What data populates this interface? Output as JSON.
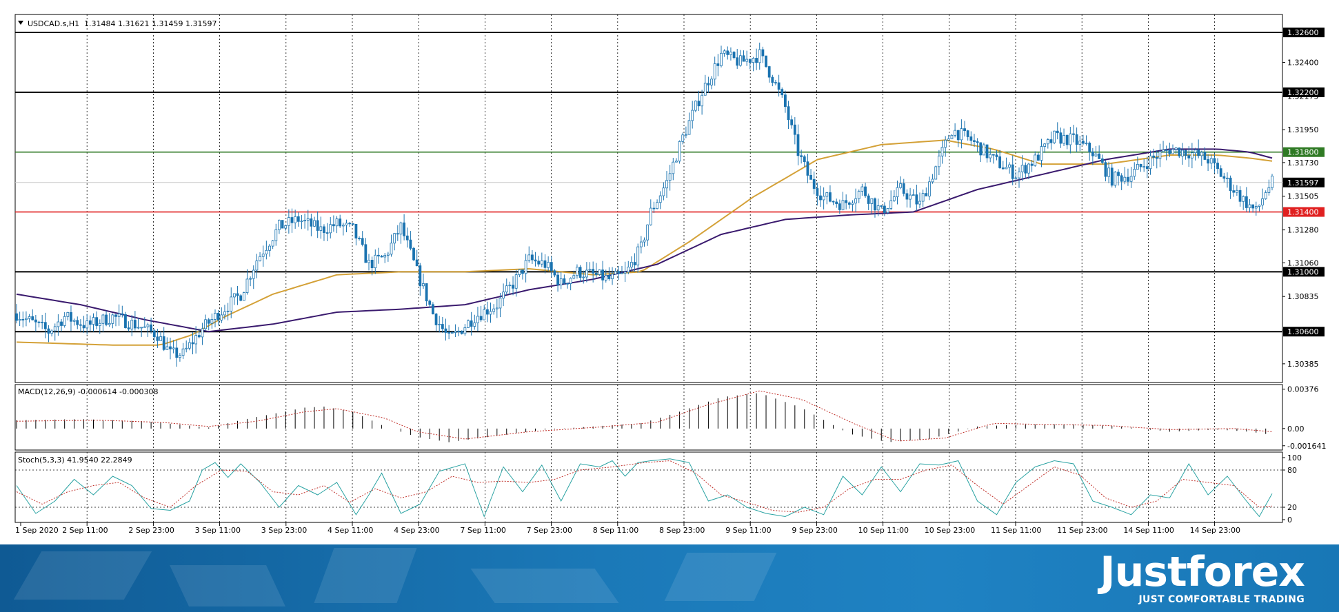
{
  "header": {
    "symbol_label": "USDCAD.s,H1",
    "ohlc": "1.31484 1.31621 1.31459 1.31597"
  },
  "indicators": {
    "macd_label": "MACD(12,26,9) -0.000614 -0.000308",
    "stoch_label": "Stoch(5,3,3) 41.9540 22.2849"
  },
  "colors": {
    "candle": "#1a73b0",
    "ma_fast": "#d4a137",
    "ma_slow": "#3a1a6e",
    "level_black": "#000000",
    "level_green": "#2f7a24",
    "level_red": "#e02020",
    "stoch_main": "#2aa3a3",
    "stoch_signal": "#c0302a",
    "macd_signal": "#c0302a"
  },
  "chart_data": [
    {
      "type": "candlestick",
      "title": "USDCAD.s,H1",
      "y_ticks": [
        "1.32600",
        "1.32400",
        "1.32175",
        "1.31950",
        "1.31730",
        "1.31505",
        "1.31280",
        "1.31060",
        "1.30835",
        "1.30610",
        "1.30385"
      ],
      "ylim": [
        1.3026,
        1.3272
      ],
      "x_ticks": [
        "1 Sep 2020",
        "2 Sep 11:00",
        "2 Sep 23:00",
        "3 Sep 11:00",
        "3 Sep 23:00",
        "4 Sep 11:00",
        "4 Sep 23:00",
        "7 Sep 11:00",
        "7 Sep 23:00",
        "8 Sep 11:00",
        "8 Sep 23:00",
        "9 Sep 11:00",
        "9 Sep 23:00",
        "10 Sep 11:00",
        "10 Sep 23:00",
        "11 Sep 11:00",
        "11 Sep 23:00",
        "14 Sep 11:00",
        "14 Sep 23:00"
      ],
      "levels": [
        {
          "value": 1.326,
          "label": "1.32600",
          "style": "black"
        },
        {
          "value": 1.322,
          "label": "1.32200",
          "style": "black"
        },
        {
          "value": 1.318,
          "label": "1.31800",
          "style": "green"
        },
        {
          "value": 1.314,
          "label": "1.31400",
          "style": "red"
        },
        {
          "value": 1.31,
          "label": "1.31000",
          "style": "black"
        },
        {
          "value": 1.306,
          "label": "1.30600",
          "style": "black"
        }
      ],
      "current_price": {
        "value": 1.31597,
        "label": "1.31597"
      },
      "close_path": [
        [
          0,
          1.3072
        ],
        [
          10,
          1.306
        ],
        [
          15,
          1.307
        ],
        [
          22,
          1.3064
        ],
        [
          30,
          1.307
        ],
        [
          38,
          1.3064
        ],
        [
          44,
          1.3058
        ],
        [
          48,
          1.3045
        ],
        [
          52,
          1.3045
        ],
        [
          58,
          1.3062
        ],
        [
          63,
          1.3072
        ],
        [
          70,
          1.3085
        ],
        [
          75,
          1.3108
        ],
        [
          82,
          1.313
        ],
        [
          88,
          1.3135
        ],
        [
          95,
          1.3128
        ],
        [
          100,
          1.3132
        ],
        [
          105,
          1.3128
        ],
        [
          110,
          1.3105
        ],
        [
          115,
          1.311
        ],
        [
          120,
          1.313
        ],
        [
          125,
          1.31
        ],
        [
          130,
          1.3072
        ],
        [
          135,
          1.3055
        ],
        [
          138,
          1.306
        ],
        [
          143,
          1.307
        ],
        [
          150,
          1.3078
        ],
        [
          155,
          1.3092
        ],
        [
          160,
          1.3108
        ],
        [
          165,
          1.3105
        ],
        [
          170,
          1.3092
        ],
        [
          175,
          1.31
        ],
        [
          180,
          1.3098
        ],
        [
          185,
          1.3095
        ],
        [
          190,
          1.3098
        ],
        [
          195,
          1.3116
        ],
        [
          198,
          1.314
        ],
        [
          203,
          1.316
        ],
        [
          208,
          1.319
        ],
        [
          214,
          1.322
        ],
        [
          220,
          1.3245
        ],
        [
          226,
          1.324
        ],
        [
          232,
          1.3245
        ],
        [
          236,
          1.323
        ],
        [
          240,
          1.321
        ],
        [
          244,
          1.318
        ],
        [
          248,
          1.316
        ],
        [
          252,
          1.315
        ],
        [
          258,
          1.3145
        ],
        [
          264,
          1.3155
        ],
        [
          270,
          1.314
        ],
        [
          276,
          1.3155
        ],
        [
          282,
          1.3145
        ],
        [
          286,
          1.3165
        ],
        [
          292,
          1.3195
        ],
        [
          298,
          1.3188
        ],
        [
          305,
          1.3175
        ],
        [
          312,
          1.3165
        ],
        [
          318,
          1.3175
        ],
        [
          324,
          1.319
        ],
        [
          330,
          1.3188
        ],
        [
          336,
          1.318
        ],
        [
          342,
          1.3162
        ],
        [
          348,
          1.3165
        ],
        [
          354,
          1.3175
        ],
        [
          360,
          1.3182
        ],
        [
          366,
          1.318
        ],
        [
          372,
          1.3175
        ],
        [
          378,
          1.316
        ],
        [
          383,
          1.3148
        ],
        [
          387,
          1.314
        ],
        [
          390,
          1.3154
        ],
        [
          392,
          1.31597
        ]
      ],
      "ma_fast": [
        [
          0,
          1.3053
        ],
        [
          30,
          1.3051
        ],
        [
          45,
          1.3051
        ],
        [
          55,
          1.3058
        ],
        [
          65,
          1.307
        ],
        [
          80,
          1.3085
        ],
        [
          100,
          1.3098
        ],
        [
          120,
          1.31
        ],
        [
          140,
          1.31
        ],
        [
          160,
          1.3102
        ],
        [
          180,
          1.3098
        ],
        [
          195,
          1.31
        ],
        [
          210,
          1.312
        ],
        [
          230,
          1.315
        ],
        [
          250,
          1.3175
        ],
        [
          270,
          1.3185
        ],
        [
          290,
          1.3188
        ],
        [
          305,
          1.3182
        ],
        [
          320,
          1.3172
        ],
        [
          340,
          1.3172
        ],
        [
          360,
          1.3178
        ],
        [
          375,
          1.3178
        ],
        [
          385,
          1.3176
        ],
        [
          392,
          1.3174
        ]
      ],
      "ma_slow": [
        [
          0,
          1.3085
        ],
        [
          20,
          1.3078
        ],
        [
          40,
          1.3068
        ],
        [
          60,
          1.306
        ],
        [
          80,
          1.3065
        ],
        [
          100,
          1.3073
        ],
        [
          120,
          1.3075
        ],
        [
          140,
          1.3078
        ],
        [
          160,
          1.3088
        ],
        [
          180,
          1.3095
        ],
        [
          200,
          1.3105
        ],
        [
          220,
          1.3125
        ],
        [
          240,
          1.3135
        ],
        [
          260,
          1.3138
        ],
        [
          280,
          1.314
        ],
        [
          300,
          1.3155
        ],
        [
          320,
          1.3165
        ],
        [
          340,
          1.3175
        ],
        [
          360,
          1.3182
        ],
        [
          375,
          1.3182
        ],
        [
          385,
          1.318
        ],
        [
          392,
          1.3176
        ]
      ]
    },
    {
      "type": "bar",
      "title": "MACD(12,26,9) -0.000614 -0.000308",
      "y_ticks": [
        "0.00376",
        "0.00",
        "-0.001641"
      ],
      "ylim": [
        -0.00205,
        0.0042
      ],
      "hist_path": [
        [
          0,
          0.0008
        ],
        [
          20,
          0.0009
        ],
        [
          40,
          0.0007
        ],
        [
          50,
          0.0004
        ],
        [
          60,
          0.0001
        ],
        [
          70,
          0.0008
        ],
        [
          80,
          0.0014
        ],
        [
          90,
          0.002
        ],
        [
          96,
          0.0021
        ],
        [
          105,
          0.0016
        ],
        [
          115,
          0.0002
        ],
        [
          125,
          -0.0008
        ],
        [
          135,
          -0.0013
        ],
        [
          150,
          -0.0007
        ],
        [
          165,
          -0.0001
        ],
        [
          180,
          0.0002
        ],
        [
          195,
          0.0005
        ],
        [
          205,
          0.0014
        ],
        [
          220,
          0.003
        ],
        [
          232,
          0.0034
        ],
        [
          245,
          0.002
        ],
        [
          260,
          -0.0005
        ],
        [
          272,
          -0.0013
        ],
        [
          285,
          -0.001
        ],
        [
          300,
          0.0002
        ],
        [
          315,
          0.0004
        ],
        [
          330,
          0.0004
        ],
        [
          345,
          0.0002
        ],
        [
          360,
          -0.0003
        ],
        [
          375,
          -0.0001
        ],
        [
          385,
          -0.0003
        ],
        [
          392,
          -0.0006
        ]
      ],
      "signal_path": [
        [
          0,
          0.0007
        ],
        [
          25,
          0.0008
        ],
        [
          45,
          0.0006
        ],
        [
          60,
          0.0002
        ],
        [
          75,
          0.0007
        ],
        [
          90,
          0.0016
        ],
        [
          100,
          0.0019
        ],
        [
          115,
          0.001
        ],
        [
          125,
          -0.0003
        ],
        [
          140,
          -0.001
        ],
        [
          160,
          -0.0003
        ],
        [
          180,
          0.0001
        ],
        [
          200,
          0.0006
        ],
        [
          215,
          0.0022
        ],
        [
          232,
          0.0036
        ],
        [
          245,
          0.0028
        ],
        [
          262,
          0.0004
        ],
        [
          275,
          -0.0012
        ],
        [
          290,
          -0.0009
        ],
        [
          305,
          0.0005
        ],
        [
          320,
          0.0004
        ],
        [
          340,
          0.0003
        ],
        [
          360,
          -0.0001
        ],
        [
          380,
          0.0
        ],
        [
          392,
          -0.0003
        ]
      ]
    },
    {
      "type": "line",
      "title": "Stoch(5,3,3) 41.9540 22.2849",
      "y_ticks": [
        "100",
        "80",
        "20",
        "0"
      ],
      "ylim": [
        0,
        100
      ],
      "levels": [
        80,
        20
      ],
      "main_path": [
        [
          0,
          55
        ],
        [
          6,
          10
        ],
        [
          12,
          30
        ],
        [
          18,
          65
        ],
        [
          24,
          40
        ],
        [
          30,
          70
        ],
        [
          36,
          55
        ],
        [
          42,
          18
        ],
        [
          48,
          15
        ],
        [
          54,
          30
        ],
        [
          58,
          80
        ],
        [
          62,
          92
        ],
        [
          66,
          68
        ],
        [
          70,
          90
        ],
        [
          76,
          60
        ],
        [
          82,
          20
        ],
        [
          88,
          55
        ],
        [
          94,
          40
        ],
        [
          100,
          60
        ],
        [
          106,
          8
        ],
        [
          110,
          40
        ],
        [
          114,
          75
        ],
        [
          120,
          10
        ],
        [
          126,
          25
        ],
        [
          132,
          78
        ],
        [
          140,
          90
        ],
        [
          146,
          5
        ],
        [
          152,
          85
        ],
        [
          158,
          45
        ],
        [
          164,
          88
        ],
        [
          170,
          30
        ],
        [
          176,
          90
        ],
        [
          182,
          85
        ],
        [
          186,
          95
        ],
        [
          190,
          70
        ],
        [
          194,
          92
        ],
        [
          198,
          95
        ],
        [
          204,
          98
        ],
        [
          210,
          92
        ],
        [
          216,
          30
        ],
        [
          222,
          40
        ],
        [
          228,
          20
        ],
        [
          234,
          10
        ],
        [
          240,
          5
        ],
        [
          246,
          20
        ],
        [
          252,
          8
        ],
        [
          258,
          70
        ],
        [
          264,
          40
        ],
        [
          270,
          85
        ],
        [
          276,
          45
        ],
        [
          282,
          90
        ],
        [
          288,
          88
        ],
        [
          294,
          95
        ],
        [
          300,
          30
        ],
        [
          306,
          8
        ],
        [
          312,
          60
        ],
        [
          318,
          85
        ],
        [
          324,
          95
        ],
        [
          330,
          90
        ],
        [
          336,
          30
        ],
        [
          342,
          20
        ],
        [
          348,
          8
        ],
        [
          354,
          40
        ],
        [
          360,
          35
        ],
        [
          366,
          90
        ],
        [
          372,
          40
        ],
        [
          378,
          70
        ],
        [
          384,
          30
        ],
        [
          388,
          5
        ],
        [
          392,
          42
        ]
      ],
      "signal_path": [
        [
          0,
          45
        ],
        [
          8,
          25
        ],
        [
          16,
          45
        ],
        [
          24,
          55
        ],
        [
          32,
          60
        ],
        [
          40,
          35
        ],
        [
          48,
          20
        ],
        [
          56,
          55
        ],
        [
          64,
          80
        ],
        [
          72,
          78
        ],
        [
          80,
          45
        ],
        [
          88,
          40
        ],
        [
          96,
          55
        ],
        [
          104,
          28
        ],
        [
          112,
          50
        ],
        [
          120,
          35
        ],
        [
          128,
          45
        ],
        [
          136,
          70
        ],
        [
          144,
          60
        ],
        [
          152,
          62
        ],
        [
          160,
          60
        ],
        [
          168,
          65
        ],
        [
          176,
          80
        ],
        [
          186,
          85
        ],
        [
          196,
          92
        ],
        [
          204,
          95
        ],
        [
          212,
          75
        ],
        [
          220,
          40
        ],
        [
          228,
          28
        ],
        [
          236,
          15
        ],
        [
          244,
          12
        ],
        [
          252,
          20
        ],
        [
          260,
          50
        ],
        [
          268,
          65
        ],
        [
          276,
          65
        ],
        [
          284,
          80
        ],
        [
          292,
          88
        ],
        [
          300,
          55
        ],
        [
          308,
          25
        ],
        [
          316,
          55
        ],
        [
          324,
          85
        ],
        [
          332,
          72
        ],
        [
          340,
          35
        ],
        [
          348,
          20
        ],
        [
          356,
          30
        ],
        [
          364,
          65
        ],
        [
          372,
          60
        ],
        [
          380,
          55
        ],
        [
          388,
          20
        ],
        [
          392,
          22
        ]
      ]
    }
  ],
  "footer": {
    "brand": "Justforex",
    "tagline": "JUST COMFORTABLE TRADING"
  }
}
